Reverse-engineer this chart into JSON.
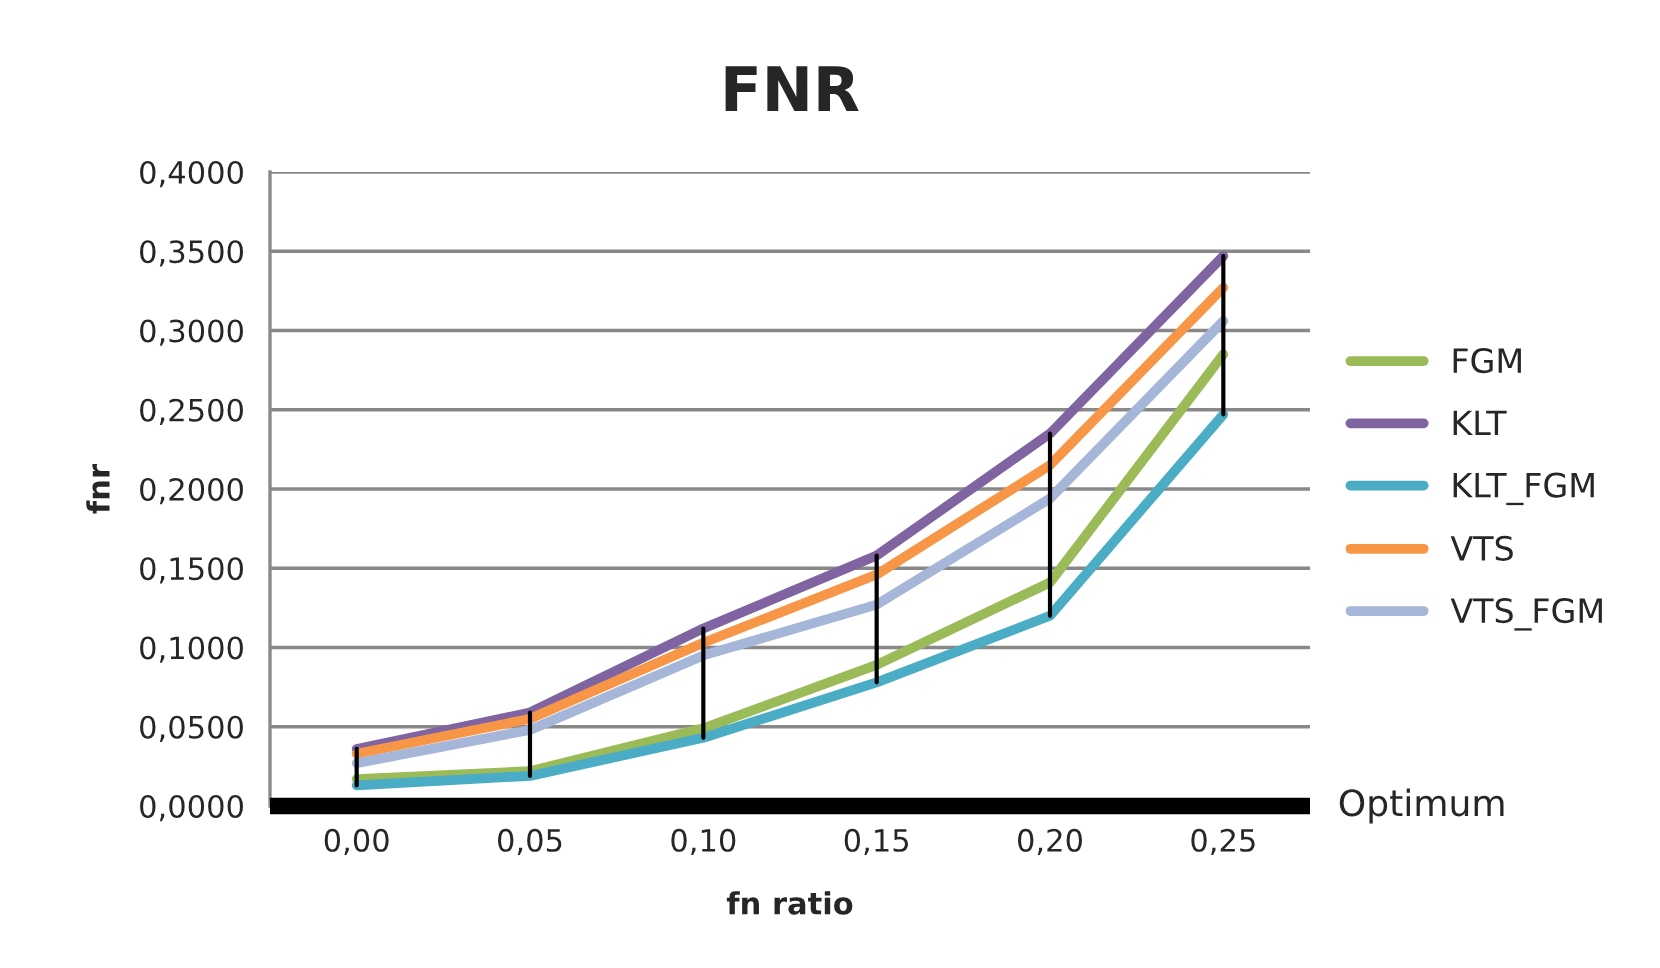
{
  "chart_data": {
    "type": "line",
    "title": "FNR",
    "xlabel": "fn ratio",
    "ylabel": "fnr",
    "categories": [
      "0,00",
      "0,05",
      "0,10",
      "0,15",
      "0,20",
      "0,25"
    ],
    "series": [
      {
        "name": "FGM",
        "color": "#9bbb59",
        "values": [
          0.017,
          0.022,
          0.049,
          0.089,
          0.141,
          0.285
        ]
      },
      {
        "name": "KLT",
        "color": "#8064a2",
        "values": [
          0.036,
          0.059,
          0.112,
          0.158,
          0.235,
          0.347
        ]
      },
      {
        "name": "KLT_FGM",
        "color": "#4bacc6",
        "values": [
          0.013,
          0.019,
          0.043,
          0.078,
          0.12,
          0.247
        ],
        "errors": [
          [
            0.013,
            0.036
          ],
          [
            0.019,
            0.059
          ],
          [
            0.043,
            0.112
          ],
          [
            0.078,
            0.158
          ],
          [
            0.12,
            0.235
          ],
          [
            0.247,
            0.347
          ]
        ]
      },
      {
        "name": "VTS",
        "color": "#f79646",
        "values": [
          0.033,
          0.055,
          0.103,
          0.146,
          0.215,
          0.327
        ]
      },
      {
        "name": "VTS_FGM",
        "color": "#a5b6d8",
        "values": [
          0.027,
          0.048,
          0.095,
          0.127,
          0.194,
          0.306
        ]
      }
    ],
    "ylim": [
      0,
      0.4
    ],
    "yticks": [
      {
        "value": 0,
        "label": "0,0000"
      },
      {
        "value": 0.05,
        "label": "0,0500"
      },
      {
        "value": 0.1,
        "label": "0,1000"
      },
      {
        "value": 0.15,
        "label": "0,1500"
      },
      {
        "value": 0.2,
        "label": "0,2000"
      },
      {
        "value": 0.25,
        "label": "0,2500"
      },
      {
        "value": 0.3,
        "label": "0,3000"
      },
      {
        "value": 0.35,
        "label": "0,3500"
      },
      {
        "value": 0.4,
        "label": "0,4000"
      }
    ],
    "annotations": [
      "Optimum"
    ],
    "grid": "y",
    "legend": "right",
    "marker": "none",
    "line_style": "solid"
  }
}
